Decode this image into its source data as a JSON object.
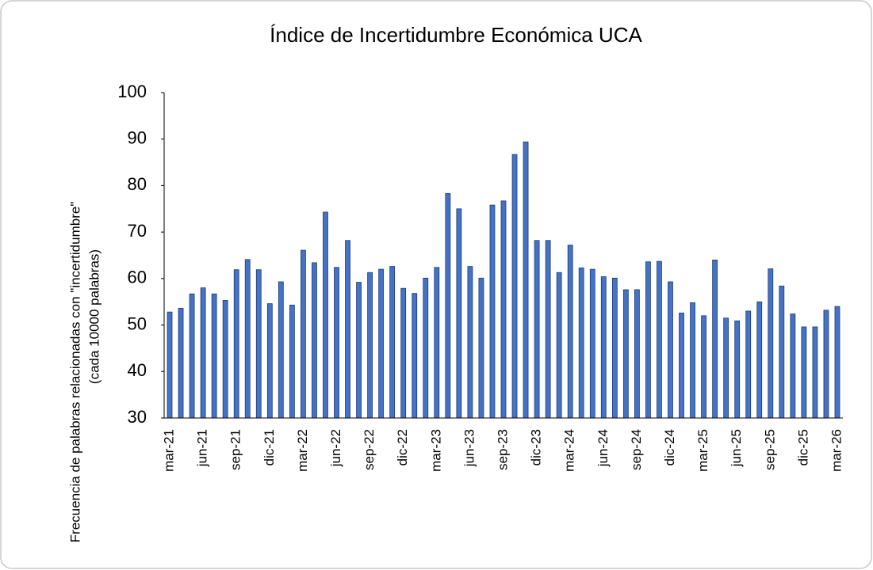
{
  "chart_data": {
    "type": "bar",
    "title": "Índice de Incertidumbre Económica UCA",
    "y_label": [
      "Frecuencia de palabras relacionadas con \"incertidumbre\"",
      "(cada 10000 palabras)"
    ],
    "categories": [
      "mar-21",
      null,
      null,
      "jun-21",
      null,
      null,
      "sep-21",
      null,
      null,
      "dic-21",
      null,
      null,
      "mar-22",
      null,
      null,
      "jun-22",
      null,
      null,
      "sep-22",
      null,
      null,
      "dic-22",
      null,
      null,
      "mar-23",
      null,
      null,
      "jun-23",
      null,
      null,
      "sep-23",
      null,
      null,
      "dic-23",
      null,
      null,
      "mar-24",
      null,
      null,
      "jun-24",
      null,
      null,
      "sep-24",
      null,
      null,
      "dic-24",
      null,
      null,
      "mar-25",
      null,
      null,
      "jun-25",
      null,
      null,
      "sep-25",
      null,
      null,
      "dic-25",
      null,
      null,
      "mar-26"
    ],
    "values": [
      52.8,
      53.6,
      56.7,
      58.0,
      56.7,
      55.3,
      61.9,
      64.1,
      61.9,
      54.6,
      59.3,
      54.3,
      66.1,
      63.4,
      74.3,
      62.4,
      68.2,
      59.2,
      61.3,
      62.0,
      62.6,
      57.9,
      56.8,
      60.1,
      62.4,
      78.3,
      75.0,
      62.6,
      60.1,
      75.8,
      76.7,
      86.7,
      89.4,
      68.2,
      68.2,
      61.3,
      67.2,
      62.3,
      62.0,
      60.4,
      60.1,
      57.6,
      57.6,
      63.6,
      63.7,
      59.3,
      52.6,
      54.8,
      52.0,
      64.0,
      51.5,
      50.9,
      53.0,
      55.0,
      62.1,
      58.4,
      52.4,
      49.6,
      49.6,
      53.2,
      54.0
    ],
    "color": "#4472c4",
    "ylim": [
      30,
      100
    ],
    "yticks": [
      30,
      40,
      50,
      60,
      70,
      80,
      90,
      100
    ],
    "grid": false
  }
}
